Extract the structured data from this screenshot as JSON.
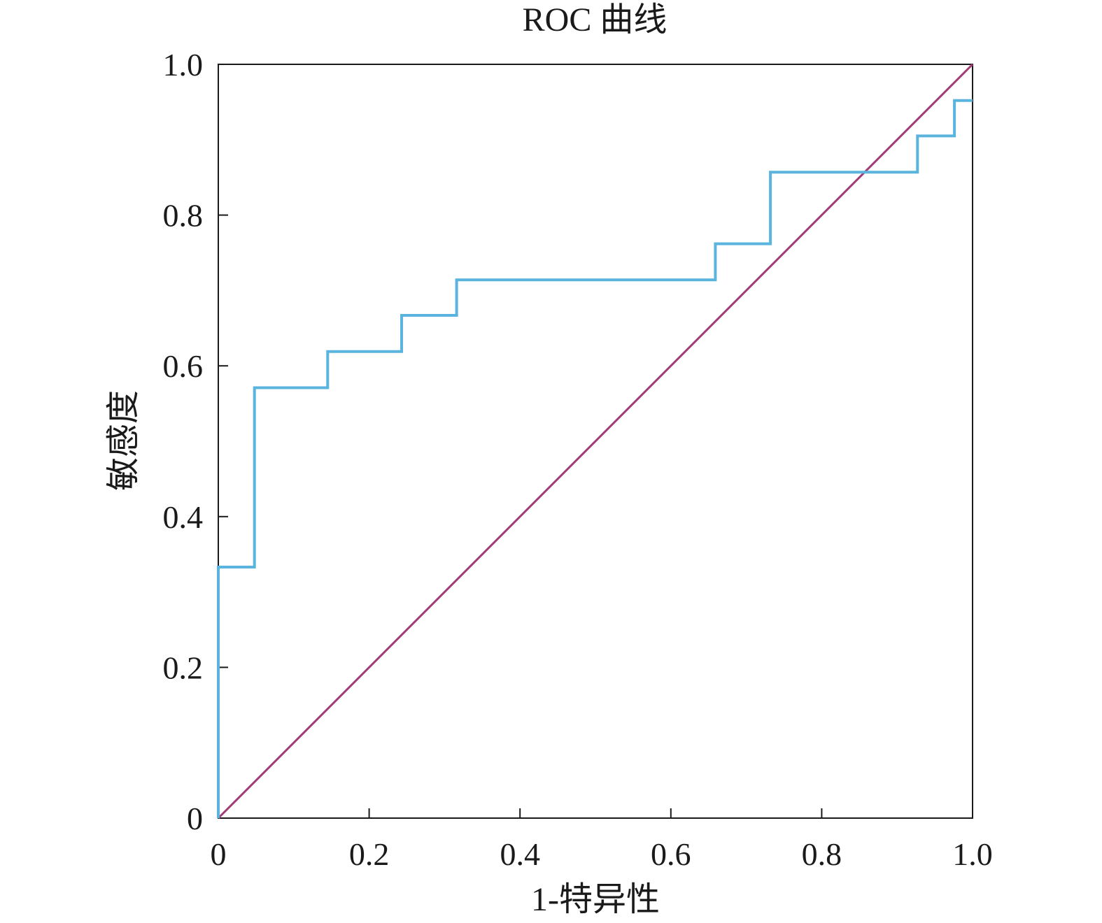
{
  "chart_data": {
    "type": "line",
    "title": "ROC 曲线",
    "xlabel": "1-特异性",
    "ylabel": "敏感度",
    "xlim": [
      0,
      1
    ],
    "ylim": [
      0,
      1
    ],
    "x_ticks": [
      "0",
      "0.2",
      "0.4",
      "0.6",
      "0.8",
      "1.0"
    ],
    "y_ticks": [
      "0",
      "0.2",
      "0.4",
      "0.6",
      "0.8",
      "1.0"
    ],
    "grid": false,
    "legend": "none",
    "series": [
      {
        "color": "#5ab4de",
        "step": true,
        "points": [
          [
            0,
            0
          ],
          [
            0,
            0.333
          ],
          [
            0.048,
            0.333
          ],
          [
            0.048,
            0.571
          ],
          [
            0.145,
            0.571
          ],
          [
            0.145,
            0.619
          ],
          [
            0.243,
            0.619
          ],
          [
            0.243,
            0.667
          ],
          [
            0.316,
            0.667
          ],
          [
            0.316,
            0.714
          ],
          [
            0.659,
            0.714
          ],
          [
            0.659,
            0.762
          ],
          [
            0.732,
            0.762
          ],
          [
            0.732,
            0.857
          ],
          [
            0.927,
            0.857
          ],
          [
            0.927,
            0.905
          ],
          [
            0.976,
            0.905
          ],
          [
            0.976,
            0.952
          ],
          [
            1.0,
            0.952
          ]
        ]
      },
      {
        "color": "#a23a78",
        "step": false,
        "points": [
          [
            0,
            0
          ],
          [
            1,
            1
          ]
        ]
      }
    ]
  }
}
